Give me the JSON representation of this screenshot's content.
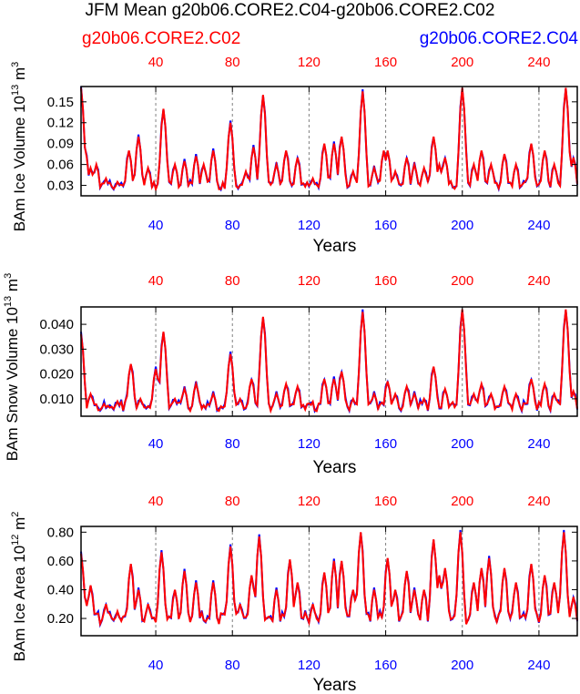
{
  "title": "JFM Mean g20b06.CORE2.C04-g20b06.CORE2.C02",
  "legend": {
    "red_label": "g20b06.CORE2.C02",
    "blue_label": "g20b06.CORE2.C04"
  },
  "colors": {
    "red": "#ff0000",
    "blue": "#0000ff",
    "grid": "#808080"
  },
  "chart_data": [
    {
      "type": "line",
      "ylabel_main": "BAm Ice Volume 10",
      "ylabel_exp": "13",
      "ylabel_unit": " m",
      "ylabel_unit_exp": "3",
      "xlabel": "Years",
      "xlim": [
        1,
        260
      ],
      "ylim": [
        0.015,
        0.172
      ],
      "yticks": [
        0.03,
        0.06,
        0.09,
        0.12,
        0.15
      ],
      "ytick_labels": [
        "0.03",
        "0.06",
        "0.09",
        "0.12",
        "0.15"
      ],
      "xticks": [
        40,
        80,
        120,
        160,
        200,
        240
      ],
      "xtick_labels_top": [
        "40",
        "80",
        "120",
        "160",
        "200",
        "240"
      ],
      "xtick_labels_bottom": [
        "40",
        "80",
        "120",
        "160",
        "200",
        "240"
      ],
      "grid_x": [
        40,
        80,
        120,
        160,
        200,
        240
      ],
      "base": 0.03,
      "floor": 0.018,
      "noise": 0.012,
      "peaks": [
        [
          1,
          0.17
        ],
        [
          3,
          0.085
        ],
        [
          6,
          0.055
        ],
        [
          9,
          0.06
        ],
        [
          14,
          0.04
        ],
        [
          20,
          0.035
        ],
        [
          26,
          0.08
        ],
        [
          31,
          0.1
        ],
        [
          36,
          0.055
        ],
        [
          44,
          0.14
        ],
        [
          50,
          0.06
        ],
        [
          55,
          0.065
        ],
        [
          61,
          0.072
        ],
        [
          65,
          0.06
        ],
        [
          70,
          0.08
        ],
        [
          79,
          0.12
        ],
        [
          87,
          0.05
        ],
        [
          91,
          0.085
        ],
        [
          96,
          0.16
        ],
        [
          103,
          0.06
        ],
        [
          108,
          0.08
        ],
        [
          114,
          0.07
        ],
        [
          122,
          0.04
        ],
        [
          128,
          0.09
        ],
        [
          133,
          0.09
        ],
        [
          137,
          0.1
        ],
        [
          143,
          0.05
        ],
        [
          148,
          0.165
        ],
        [
          154,
          0.055
        ],
        [
          159,
          0.08
        ],
        [
          161,
          0.08
        ],
        [
          165,
          0.05
        ],
        [
          171,
          0.07
        ],
        [
          175,
          0.06
        ],
        [
          180,
          0.055
        ],
        [
          185,
          0.1
        ],
        [
          188,
          0.06
        ],
        [
          191,
          0.07
        ],
        [
          200,
          0.17
        ],
        [
          206,
          0.06
        ],
        [
          210,
          0.08
        ],
        [
          215,
          0.06
        ],
        [
          222,
          0.075
        ],
        [
          228,
          0.06
        ],
        [
          236,
          0.09
        ],
        [
          243,
          0.08
        ],
        [
          248,
          0.06
        ],
        [
          254,
          0.17
        ],
        [
          258,
          0.07
        ]
      ],
      "blue_offset": 0.003,
      "seed": 11
    },
    {
      "type": "line",
      "ylabel_main": "BAm Snow Volume 10",
      "ylabel_exp": "13",
      "ylabel_unit": " m",
      "ylabel_unit_exp": "3",
      "xlabel": "Years",
      "xlim": [
        1,
        260
      ],
      "ylim": [
        0.003,
        0.047
      ],
      "yticks": [
        0.01,
        0.02,
        0.03,
        0.04
      ],
      "ytick_labels": [
        "0.010",
        "0.020",
        "0.030",
        "0.040"
      ],
      "xticks": [
        40,
        80,
        120,
        160,
        200,
        240
      ],
      "xtick_labels_top": [
        "40",
        "80",
        "120",
        "160",
        "200",
        "240"
      ],
      "xtick_labels_bottom": [
        "40",
        "80",
        "120",
        "160",
        "200",
        "240"
      ],
      "grid_x": [
        40,
        80,
        120,
        160,
        200,
        240
      ],
      "base": 0.007,
      "floor": 0.004,
      "noise": 0.004,
      "peaks": [
        [
          1,
          0.036
        ],
        [
          6,
          0.012
        ],
        [
          13,
          0.008
        ],
        [
          20,
          0.009
        ],
        [
          27,
          0.024
        ],
        [
          32,
          0.01
        ],
        [
          40,
          0.022
        ],
        [
          44,
          0.037
        ],
        [
          50,
          0.01
        ],
        [
          55,
          0.014
        ],
        [
          61,
          0.016
        ],
        [
          70,
          0.012
        ],
        [
          79,
          0.028
        ],
        [
          84,
          0.01
        ],
        [
          90,
          0.018
        ],
        [
          96,
          0.043
        ],
        [
          103,
          0.012
        ],
        [
          108,
          0.016
        ],
        [
          114,
          0.015
        ],
        [
          120,
          0.006
        ],
        [
          128,
          0.018
        ],
        [
          133,
          0.018
        ],
        [
          137,
          0.021
        ],
        [
          143,
          0.01
        ],
        [
          148,
          0.045
        ],
        [
          154,
          0.012
        ],
        [
          161,
          0.017
        ],
        [
          165,
          0.012
        ],
        [
          171,
          0.015
        ],
        [
          175,
          0.012
        ],
        [
          180,
          0.01
        ],
        [
          185,
          0.023
        ],
        [
          191,
          0.014
        ],
        [
          200,
          0.046
        ],
        [
          206,
          0.012
        ],
        [
          210,
          0.016
        ],
        [
          215,
          0.012
        ],
        [
          222,
          0.015
        ],
        [
          228,
          0.012
        ],
        [
          236,
          0.018
        ],
        [
          243,
          0.016
        ],
        [
          248,
          0.012
        ],
        [
          254,
          0.046
        ],
        [
          258,
          0.013
        ]
      ],
      "blue_offset": 0.001,
      "seed": 29
    },
    {
      "type": "line",
      "ylabel_main": "BAm Ice Area 10",
      "ylabel_exp": "12",
      "ylabel_unit": " m",
      "ylabel_unit_exp": "2",
      "xlabel": "Years",
      "xlim": [
        1,
        260
      ],
      "ylim": [
        0.08,
        0.84
      ],
      "yticks": [
        0.2,
        0.4,
        0.6,
        0.8
      ],
      "ytick_labels": [
        "0.20",
        "0.40",
        "0.60",
        "0.80"
      ],
      "xticks": [
        40,
        80,
        120,
        160,
        200,
        240
      ],
      "xtick_labels_top": [
        "40",
        "80",
        "120",
        "160",
        "200",
        "240"
      ],
      "xtick_labels_bottom": [
        "40",
        "80",
        "120",
        "160",
        "200",
        "240"
      ],
      "grid_x": [
        40,
        80,
        120,
        160,
        200,
        240
      ],
      "base": 0.2,
      "floor": 0.1,
      "noise": 0.08,
      "peaks": [
        [
          1,
          0.65
        ],
        [
          3,
          0.35
        ],
        [
          6,
          0.43
        ],
        [
          9,
          0.2
        ],
        [
          14,
          0.3
        ],
        [
          20,
          0.25
        ],
        [
          27,
          0.58
        ],
        [
          31,
          0.4
        ],
        [
          36,
          0.3
        ],
        [
          43,
          0.66
        ],
        [
          50,
          0.4
        ],
        [
          55,
          0.53
        ],
        [
          61,
          0.45
        ],
        [
          70,
          0.45
        ],
        [
          79,
          0.7
        ],
        [
          84,
          0.3
        ],
        [
          90,
          0.5
        ],
        [
          94,
          0.77
        ],
        [
          103,
          0.4
        ],
        [
          110,
          0.61
        ],
        [
          114,
          0.45
        ],
        [
          122,
          0.3
        ],
        [
          128,
          0.52
        ],
        [
          133,
          0.6
        ],
        [
          137,
          0.6
        ],
        [
          143,
          0.4
        ],
        [
          147,
          0.8
        ],
        [
          154,
          0.4
        ],
        [
          161,
          0.62
        ],
        [
          165,
          0.4
        ],
        [
          171,
          0.53
        ],
        [
          175,
          0.4
        ],
        [
          180,
          0.4
        ],
        [
          185,
          0.75
        ],
        [
          188,
          0.5
        ],
        [
          191,
          0.55
        ],
        [
          199,
          0.8
        ],
        [
          206,
          0.45
        ],
        [
          210,
          0.55
        ],
        [
          214,
          0.62
        ],
        [
          222,
          0.55
        ],
        [
          228,
          0.45
        ],
        [
          236,
          0.58
        ],
        [
          243,
          0.5
        ],
        [
          248,
          0.45
        ],
        [
          253,
          0.8
        ],
        [
          258,
          0.35
        ]
      ],
      "blue_offset": 0.015,
      "seed": 47
    }
  ]
}
